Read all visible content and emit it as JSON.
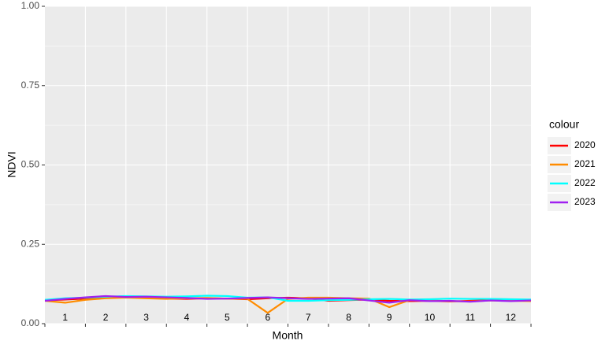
{
  "chart_data": {
    "type": "line",
    "x_label": "Month",
    "y_label": "NDVI",
    "categories": [
      "1",
      "2",
      "3",
      "4",
      "5",
      "6",
      "7",
      "8",
      "9",
      "10",
      "11",
      "12"
    ],
    "x": [
      0,
      0.5,
      1,
      1.5,
      2,
      2.5,
      3,
      3.5,
      4,
      4.5,
      5,
      5.5,
      6,
      6.5,
      7,
      7.5,
      8,
      8.5,
      9,
      9.5,
      10,
      10.5,
      11,
      11.5,
      12
    ],
    "xlim": [
      0,
      12
    ],
    "ylim": [
      0,
      1
    ],
    "yticks": [
      {
        "value": 0,
        "label": "0.00"
      },
      {
        "value": 0.25,
        "label": "0.25"
      },
      {
        "value": 0.5,
        "label": "0.50"
      },
      {
        "value": 0.75,
        "label": "0.75"
      },
      {
        "value": 1,
        "label": "1.00"
      }
    ],
    "grid": true,
    "legend_title": "colour",
    "series": [
      {
        "name": "2020",
        "color": "#ff0000",
        "values": [
          0.073,
          0.076,
          0.079,
          0.081,
          0.083,
          0.082,
          0.079,
          0.078,
          0.08,
          0.079,
          0.077,
          0.08,
          0.082,
          0.08,
          0.072,
          0.074,
          0.076,
          0.072,
          0.071,
          0.072,
          0.07,
          0.072,
          0.074,
          0.073,
          0.075
        ]
      },
      {
        "name": "2021",
        "color": "#ff8c00",
        "values": [
          0.072,
          0.066,
          0.075,
          0.08,
          0.082,
          0.08,
          0.078,
          0.08,
          0.081,
          0.079,
          0.078,
          0.034,
          0.078,
          0.082,
          0.082,
          0.08,
          0.079,
          0.052,
          0.074,
          0.073,
          0.071,
          0.07,
          0.073,
          0.072,
          0.071
        ]
      },
      {
        "name": "2022",
        "color": "#00ffff",
        "values": [
          0.075,
          0.08,
          0.082,
          0.085,
          0.087,
          0.086,
          0.085,
          0.086,
          0.088,
          0.087,
          0.082,
          0.083,
          0.072,
          0.072,
          0.074,
          0.075,
          0.077,
          0.078,
          0.076,
          0.077,
          0.079,
          0.078,
          0.078,
          0.077,
          0.076
        ]
      },
      {
        "name": "2023",
        "color": "#a020f0",
        "values": [
          0.072,
          0.078,
          0.083,
          0.087,
          0.084,
          0.085,
          0.083,
          0.081,
          0.078,
          0.079,
          0.081,
          0.083,
          0.08,
          0.078,
          0.079,
          0.08,
          0.073,
          0.066,
          0.074,
          0.071,
          0.072,
          0.069,
          0.073,
          0.071,
          0.073
        ]
      }
    ]
  }
}
